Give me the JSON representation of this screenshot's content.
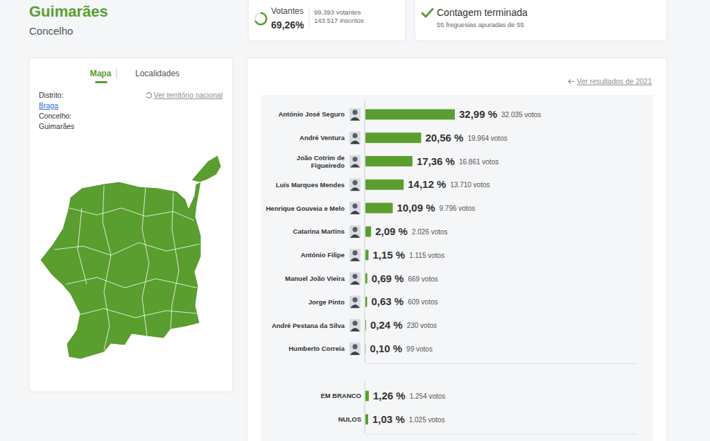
{
  "header": {
    "title": "Guimarães",
    "subtitle": "Concelho"
  },
  "turnout": {
    "label": "Votantes",
    "value": 69.26,
    "value_label": "69,26%",
    "voters": "99.393 votantes",
    "registered": "143.517 inscritos"
  },
  "count": {
    "title": "Contagem terminada",
    "detail": "55 freguesias apuradas de 55"
  },
  "map_panel": {
    "tabs": [
      "Mapa",
      "Localidades"
    ],
    "reset_link": "Ver território nacional",
    "fields": [
      {
        "label": "Distrito:",
        "value": "Braga"
      },
      {
        "label": "Concelho:",
        "value": "Guimarães"
      }
    ]
  },
  "results_link": "Ver resultados de 2021",
  "chart_data": [
    {
      "type": "bar",
      "orientation": "horizontal",
      "categories": [
        "António José Seguro",
        "André Ventura",
        "João Cotrim de Figueiredo",
        "Luís Marques Mendes",
        "Henrique Gouveia e Melo",
        "Catarina Martins",
        "António Filipe",
        "Manuel João Vieira",
        "Jorge Pinto",
        "André Pestana da Silva",
        "Humberto Correia"
      ],
      "values": [
        32.99,
        20.56,
        17.36,
        14.12,
        10.09,
        2.09,
        1.15,
        0.69,
        0.63,
        0.24,
        0.1
      ],
      "value_labels": [
        "32,99 %",
        "20,56 %",
        "17,36 %",
        "14,12 %",
        "10,09 %",
        "2,09 %",
        "1,15 %",
        "0,69 %",
        "0,63 %",
        "0,24 %",
        "0,10 %"
      ],
      "vote_labels": [
        "32.035 votos",
        "19.964 votos",
        "16.861 votos",
        "13.710 votos",
        "9.796 votos",
        "2.026 votos",
        "1.115 votos",
        "669 votos",
        "609 votos",
        "230 votos",
        "99 votos"
      ],
      "color": "#5a9e2f",
      "xlim": [
        0,
        100
      ],
      "xticks": [],
      "tick_labels": false,
      "data_labels": true
    },
    {
      "type": "bar",
      "orientation": "horizontal",
      "categories": [
        "EM BRANCO",
        "NULOS"
      ],
      "values": [
        1.26,
        1.03
      ],
      "value_labels": [
        "1,26 %",
        "1,03 %"
      ],
      "vote_labels": [
        "1.254 votos",
        "1.025 votos"
      ],
      "color": "#5a9e2f",
      "xlim": [
        0,
        100
      ],
      "xticks": [],
      "tick_labels": false,
      "data_labels": true
    }
  ]
}
